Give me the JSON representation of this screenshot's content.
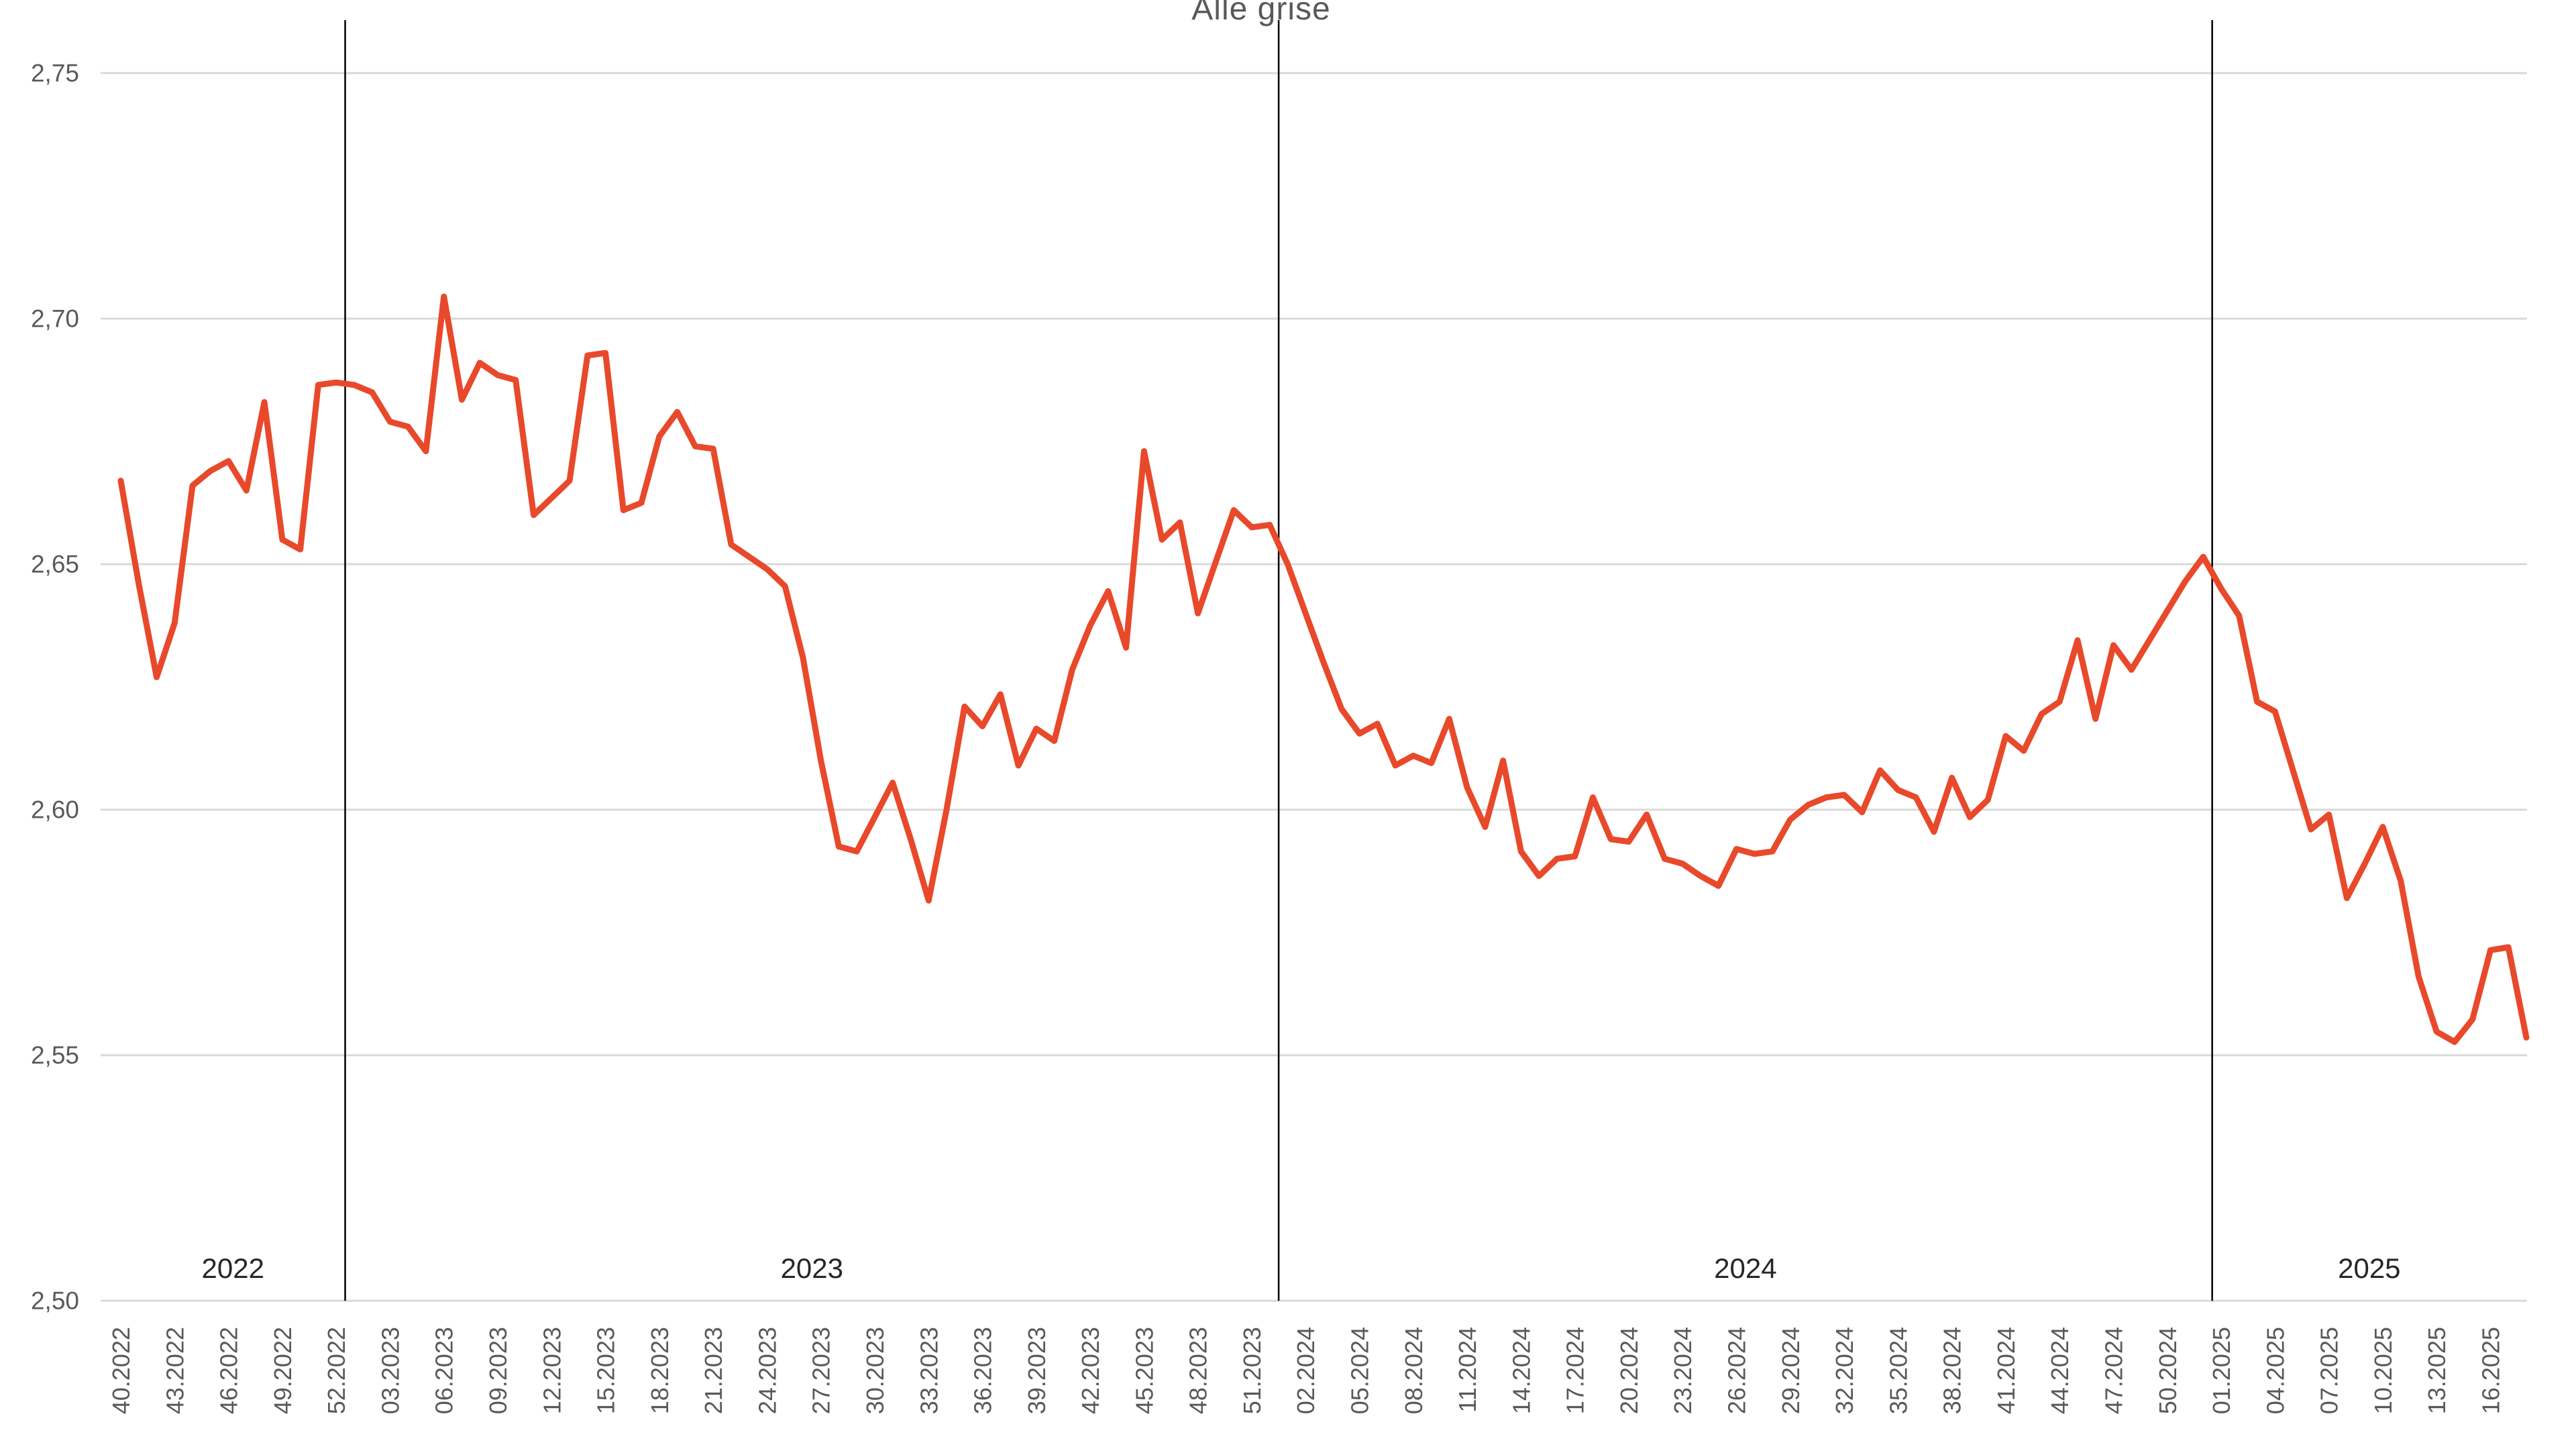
{
  "chart_data": {
    "type": "line",
    "title": "Alle grise",
    "ylabel": "",
    "xlabel": "",
    "ylim": [
      2.5,
      2.75
    ],
    "y_tick_labels_top_down": [
      "2,75",
      "2,70",
      "2,65",
      "2,60",
      "2,55",
      "2,50"
    ],
    "grid": "horizontal",
    "legend": "none",
    "x_start_label": "40.2022",
    "x_tick_interval_weeks": 3,
    "x_tick_labels": [
      "40.2022",
      "43.2022",
      "46.2022",
      "49.2022",
      "52.2022",
      "03.2023",
      "06.2023",
      "09.2023",
      "12.2023",
      "15.2023",
      "18.2023",
      "21.2023",
      "24.2023",
      "27.2023",
      "30.2023",
      "33.2023",
      "36.2023",
      "39.2023",
      "42.2023",
      "45.2023",
      "48.2023",
      "51.2023",
      "02.2024",
      "05.2024",
      "08.2024",
      "11.2024",
      "14.2024",
      "17.2024",
      "20.2024",
      "23.2024",
      "26.2024",
      "29.2024",
      "32.2024",
      "35.2024",
      "38.2024",
      "41.2024",
      "44.2024",
      "47.2024",
      "50.2024",
      "01.2025",
      "04.2025",
      "07.2025",
      "10.2025",
      "13.2025",
      "16.2025"
    ],
    "year_separators_after_index": [
      12,
      64,
      116
    ],
    "year_band_labels": [
      "2022",
      "2023",
      "2024",
      "2025"
    ],
    "series": [
      {
        "name": "Alle grise",
        "values": [
          2.667,
          2.646,
          2.627,
          2.638,
          2.666,
          2.669,
          2.671,
          2.665,
          2.683,
          2.655,
          2.653,
          2.6865,
          2.687,
          2.6865,
          2.685,
          2.679,
          2.678,
          2.673,
          2.7045,
          2.6835,
          2.691,
          2.6885,
          2.6875,
          2.66,
          2.6635,
          2.667,
          2.6925,
          2.693,
          2.661,
          2.6625,
          2.676,
          2.681,
          2.674,
          2.6735,
          2.654,
          2.6515,
          2.649,
          2.6455,
          2.631,
          2.61,
          2.5925,
          2.5915,
          2.5985,
          2.6055,
          2.594,
          2.5815,
          2.6,
          2.621,
          2.617,
          2.6235,
          2.609,
          2.6165,
          2.614,
          2.6285,
          2.6375,
          2.6445,
          2.633,
          2.673,
          2.655,
          2.6585,
          2.64,
          2.6505,
          2.661,
          2.6575,
          2.658,
          2.65,
          2.64,
          2.63,
          2.6205,
          2.6155,
          2.6175,
          2.609,
          2.611,
          2.6095,
          2.6185,
          2.6045,
          2.5965,
          2.61,
          2.5915,
          2.5865,
          2.59,
          2.5905,
          2.6025,
          2.594,
          2.5935,
          2.599,
          2.59,
          2.589,
          2.5865,
          2.5845,
          2.592,
          2.591,
          2.5915,
          2.598,
          2.601,
          2.6025,
          2.603,
          2.5995,
          2.608,
          2.604,
          2.6025,
          2.5955,
          2.6065,
          2.5985,
          2.602,
          2.615,
          2.612,
          2.6195,
          2.622,
          2.6345,
          2.6185,
          2.6335,
          2.6285,
          2.6345,
          2.6405,
          2.6465,
          2.6515,
          2.645,
          2.6395,
          2.622,
          2.62,
          2.608,
          2.596,
          2.599,
          2.582,
          2.589,
          2.5965,
          2.5855,
          2.566,
          2.5548,
          2.5527,
          2.5573,
          2.5714,
          2.572,
          2.5536
        ]
      }
    ],
    "colors": {
      "series_line": "#E8492B",
      "gridline": "#D9D9D9",
      "axis_tick_text": "#595959",
      "year_label_text": "#262626",
      "year_separator": "#000000",
      "title_text": "#595959",
      "background": "#ffffff"
    }
  }
}
